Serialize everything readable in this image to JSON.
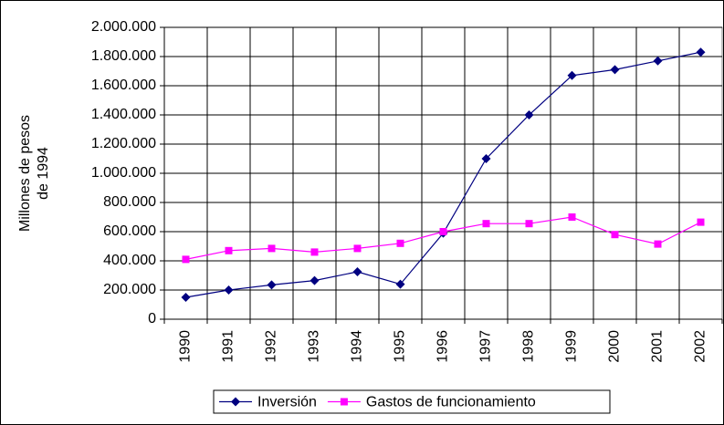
{
  "chart_data": {
    "type": "line",
    "y_label_lines": [
      "Millones de pesos",
      "de 1994"
    ],
    "categories": [
      "1990",
      "1991",
      "1992",
      "1993",
      "1994",
      "1995",
      "1996",
      "1997",
      "1998",
      "1999",
      "2000",
      "2001",
      "2002"
    ],
    "series": [
      {
        "name": "Inversión",
        "color": "#000080",
        "marker": "diamond",
        "values": [
          150000,
          200000,
          235000,
          265000,
          325000,
          240000,
          590000,
          1100000,
          1400000,
          1670000,
          1710000,
          1770000,
          1830000
        ]
      },
      {
        "name": "Gastos de funcionamiento",
        "color": "#ff00ff",
        "marker": "square",
        "values": [
          410000,
          470000,
          485000,
          460000,
          485000,
          520000,
          600000,
          655000,
          655000,
          700000,
          580000,
          515000,
          665000
        ]
      }
    ],
    "ylim": [
      0,
      2000000
    ],
    "yticks": [
      0,
      {
        "value": 200000,
        "label": "200.000"
      },
      {
        "value": 400000,
        "label": "400.000"
      },
      {
        "value": 600000,
        "label": "600.000"
      },
      {
        "value": 800000,
        "label": "800.000"
      },
      {
        "value": 1000000,
        "label": "1.000.000"
      },
      {
        "value": 1200000,
        "label": "1.200.000"
      },
      {
        "value": 1400000,
        "label": "1.400.000"
      },
      {
        "value": 1600000,
        "label": "1.600.000"
      },
      {
        "value": 1800000,
        "label": "1.800.000"
      },
      {
        "value": 2000000,
        "label": "2.000.000"
      }
    ],
    "grid": true,
    "legend": "bottom"
  }
}
